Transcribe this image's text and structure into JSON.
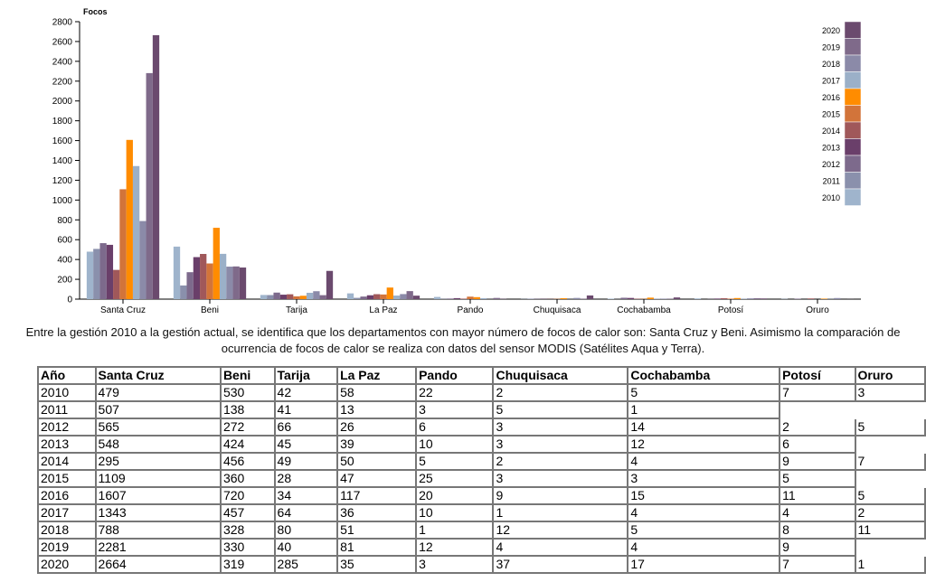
{
  "chart_data": {
    "type": "bar",
    "ylabel": "Focos",
    "ylim": [
      0,
      2800
    ],
    "yticks": [
      0,
      200,
      400,
      600,
      800,
      1000,
      1200,
      1400,
      1600,
      1800,
      2000,
      2200,
      2400,
      2600,
      2800
    ],
    "categories": [
      "Santa Cruz",
      "Beni",
      "Tarija",
      "La Paz",
      "Pando",
      "Chuquisaca",
      "Cochabamba",
      "Potosí",
      "Oruro"
    ],
    "legend_position": "right",
    "series": [
      {
        "name": "2010",
        "color": "#9fb4cc",
        "values": [
          479,
          530,
          42,
          58,
          22,
          2,
          5,
          7,
          3
        ]
      },
      {
        "name": "2011",
        "color": "#8a90ac",
        "values": [
          507,
          138,
          41,
          13,
          3,
          5,
          1,
          0,
          0
        ]
      },
      {
        "name": "2012",
        "color": "#7d6a8c",
        "values": [
          565,
          272,
          66,
          26,
          6,
          3,
          14,
          2,
          5
        ]
      },
      {
        "name": "2013",
        "color": "#6a3f6a",
        "values": [
          548,
          424,
          45,
          39,
          10,
          3,
          12,
          6,
          0
        ]
      },
      {
        "name": "2014",
        "color": "#a0585a",
        "values": [
          295,
          456,
          49,
          50,
          5,
          2,
          4,
          9,
          7
        ]
      },
      {
        "name": "2015",
        "color": "#d2743a",
        "values": [
          1109,
          360,
          28,
          47,
          25,
          3,
          3,
          5,
          0
        ]
      },
      {
        "name": "2016",
        "color": "#ff8c00",
        "values": [
          1607,
          720,
          34,
          117,
          20,
          9,
          15,
          11,
          5
        ]
      },
      {
        "name": "2017",
        "color": "#9bb0c8",
        "values": [
          1343,
          457,
          64,
          36,
          10,
          1,
          4,
          4,
          2
        ]
      },
      {
        "name": "2018",
        "color": "#8b8aa8",
        "values": [
          788,
          328,
          80,
          51,
          1,
          12,
          5,
          8,
          11
        ]
      },
      {
        "name": "2019",
        "color": "#7f6a8a",
        "values": [
          2281,
          330,
          40,
          81,
          12,
          4,
          4,
          9,
          0
        ]
      },
      {
        "name": "2020",
        "color": "#6b4a6e",
        "values": [
          2664,
          319,
          285,
          35,
          3,
          37,
          17,
          7,
          1
        ]
      }
    ]
  },
  "caption": "Entre la gestión 2010 a la gestión actual, se identifica que los departamentos con mayor número de focos de calor son: Santa Cruz y Beni. Asimismo la comparación de ocurrencia de focos de calor se realiza con datos del sensor MODIS (Satélites Aqua y Terra).",
  "table": {
    "headers": [
      "Año",
      "Santa Cruz",
      "Beni",
      "Tarija",
      "La Paz",
      "Pando",
      "Chuquisaca",
      "Cochabamba",
      "Potosí",
      "Oruro"
    ],
    "rows": [
      [
        "2010",
        "479",
        "530",
        "42",
        "58",
        "22",
        "2",
        "5",
        "7",
        "3"
      ],
      [
        "2011",
        "507",
        "138",
        "41",
        "13",
        "3",
        "5",
        "1",
        "",
        ""
      ],
      [
        "2012",
        "565",
        "272",
        "66",
        "26",
        "6",
        "3",
        "14",
        "2",
        "5"
      ],
      [
        "2013",
        "548",
        "424",
        "45",
        "39",
        "10",
        "3",
        "12",
        "6",
        ""
      ],
      [
        "2014",
        "295",
        "456",
        "49",
        "50",
        "5",
        "2",
        "4",
        "9",
        "7"
      ],
      [
        "2015",
        "1109",
        "360",
        "28",
        "47",
        "25",
        "3",
        "3",
        "5",
        ""
      ],
      [
        "2016",
        "1607",
        "720",
        "34",
        "117",
        "20",
        "9",
        "15",
        "11",
        "5"
      ],
      [
        "2017",
        "1343",
        "457",
        "64",
        "36",
        "10",
        "1",
        "4",
        "4",
        "2"
      ],
      [
        "2018",
        "788",
        "328",
        "80",
        "51",
        "1",
        "12",
        "5",
        "8",
        "11"
      ],
      [
        "2019",
        "2281",
        "330",
        "40",
        "81",
        "12",
        "4",
        "4",
        "9",
        ""
      ],
      [
        "2020",
        "2664",
        "319",
        "285",
        "35",
        "3",
        "37",
        "17",
        "7",
        "1"
      ]
    ]
  }
}
